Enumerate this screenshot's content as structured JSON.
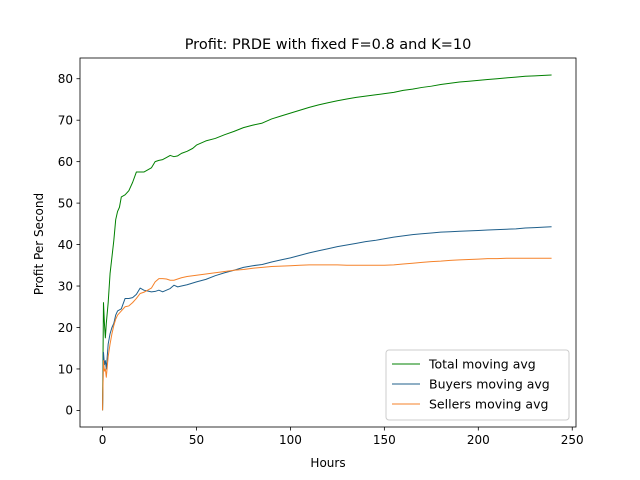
{
  "chart_data": {
    "type": "line",
    "title": "Profit: PRDE with fixed F=0.8 and K=10",
    "xlabel": "Hours",
    "ylabel": "Profit Per Second",
    "xlim": [
      -12,
      252
    ],
    "ylim": [
      -4,
      85
    ],
    "xticks": [
      0,
      50,
      100,
      150,
      200,
      250
    ],
    "yticks": [
      0,
      10,
      20,
      30,
      40,
      50,
      60,
      70,
      80
    ],
    "grid": false,
    "legend_position": "lower right",
    "series": [
      {
        "name": "Total moving avg",
        "color": "#008000",
        "points": [
          [
            0,
            0
          ],
          [
            0.5,
            26
          ],
          [
            1,
            21
          ],
          [
            1.5,
            17.5
          ],
          [
            2,
            21
          ],
          [
            3,
            26
          ],
          [
            4,
            33
          ],
          [
            5,
            37
          ],
          [
            6,
            41
          ],
          [
            7,
            46
          ],
          [
            8,
            48
          ],
          [
            9,
            49
          ],
          [
            10,
            51.5
          ],
          [
            12,
            52
          ],
          [
            14,
            53
          ],
          [
            16,
            55
          ],
          [
            18,
            57.5
          ],
          [
            20,
            57.5
          ],
          [
            22,
            57.5
          ],
          [
            24,
            58
          ],
          [
            26,
            58.5
          ],
          [
            28,
            60
          ],
          [
            30,
            60.3
          ],
          [
            32,
            60.5
          ],
          [
            34,
            61
          ],
          [
            36,
            61.5
          ],
          [
            38,
            61.2
          ],
          [
            40,
            61.4
          ],
          [
            42,
            62
          ],
          [
            45,
            62.5
          ],
          [
            48,
            63.2
          ],
          [
            50,
            64
          ],
          [
            55,
            65
          ],
          [
            60,
            65.6
          ],
          [
            65,
            66.5
          ],
          [
            70,
            67.3
          ],
          [
            75,
            68.2
          ],
          [
            80,
            68.8
          ],
          [
            85,
            69.3
          ],
          [
            90,
            70.3
          ],
          [
            95,
            71
          ],
          [
            100,
            71.7
          ],
          [
            105,
            72.4
          ],
          [
            110,
            73.1
          ],
          [
            115,
            73.7
          ],
          [
            120,
            74.2
          ],
          [
            125,
            74.7
          ],
          [
            130,
            75.1
          ],
          [
            135,
            75.5
          ],
          [
            140,
            75.8
          ],
          [
            145,
            76.1
          ],
          [
            150,
            76.4
          ],
          [
            155,
            76.7
          ],
          [
            160,
            77.2
          ],
          [
            165,
            77.5
          ],
          [
            170,
            77.9
          ],
          [
            175,
            78.2
          ],
          [
            180,
            78.6
          ],
          [
            185,
            78.9
          ],
          [
            190,
            79.2
          ],
          [
            195,
            79.4
          ],
          [
            200,
            79.6
          ],
          [
            205,
            79.8
          ],
          [
            210,
            80
          ],
          [
            215,
            80.2
          ],
          [
            220,
            80.4
          ],
          [
            225,
            80.6
          ],
          [
            230,
            80.7
          ],
          [
            235,
            80.8
          ],
          [
            239,
            80.9
          ]
        ]
      },
      {
        "name": "Buyers moving avg",
        "color": "#1f5f8b",
        "points": [
          [
            0,
            0
          ],
          [
            0.5,
            14
          ],
          [
            1,
            11
          ],
          [
            1.5,
            12
          ],
          [
            2,
            10
          ],
          [
            3,
            16
          ],
          [
            4,
            18.5
          ],
          [
            5,
            20
          ],
          [
            6,
            21
          ],
          [
            7,
            23
          ],
          [
            8,
            24
          ],
          [
            10,
            24.5
          ],
          [
            12,
            27
          ],
          [
            14,
            27
          ],
          [
            16,
            27.2
          ],
          [
            18,
            28
          ],
          [
            20,
            29.5
          ],
          [
            22,
            29
          ],
          [
            24,
            28.8
          ],
          [
            26,
            28.6
          ],
          [
            28,
            28.7
          ],
          [
            30,
            29
          ],
          [
            32,
            28.6
          ],
          [
            34,
            29
          ],
          [
            36,
            29.4
          ],
          [
            38,
            30.2
          ],
          [
            40,
            29.8
          ],
          [
            42,
            30
          ],
          [
            45,
            30.3
          ],
          [
            50,
            31
          ],
          [
            55,
            31.6
          ],
          [
            60,
            32.5
          ],
          [
            65,
            33.2
          ],
          [
            70,
            33.8
          ],
          [
            75,
            34.5
          ],
          [
            80,
            34.9
          ],
          [
            85,
            35.2
          ],
          [
            90,
            35.8
          ],
          [
            95,
            36.3
          ],
          [
            100,
            36.8
          ],
          [
            105,
            37.4
          ],
          [
            110,
            38
          ],
          [
            115,
            38.5
          ],
          [
            120,
            39
          ],
          [
            125,
            39.5
          ],
          [
            130,
            39.9
          ],
          [
            135,
            40.3
          ],
          [
            140,
            40.7
          ],
          [
            145,
            41
          ],
          [
            150,
            41.4
          ],
          [
            155,
            41.8
          ],
          [
            160,
            42.1
          ],
          [
            165,
            42.4
          ],
          [
            170,
            42.6
          ],
          [
            175,
            42.8
          ],
          [
            180,
            43
          ],
          [
            185,
            43.1
          ],
          [
            190,
            43.2
          ],
          [
            195,
            43.3
          ],
          [
            200,
            43.4
          ],
          [
            205,
            43.5
          ],
          [
            210,
            43.6
          ],
          [
            215,
            43.7
          ],
          [
            220,
            43.8
          ],
          [
            225,
            44
          ],
          [
            230,
            44.1
          ],
          [
            235,
            44.2
          ],
          [
            239,
            44.3
          ]
        ]
      },
      {
        "name": "Sellers moving avg",
        "color": "#f5822a",
        "points": [
          [
            0,
            0
          ],
          [
            0.5,
            12
          ],
          [
            1,
            9.5
          ],
          [
            1.5,
            10
          ],
          [
            2,
            8
          ],
          [
            3,
            13
          ],
          [
            4,
            16
          ],
          [
            5,
            18.5
          ],
          [
            6,
            20.5
          ],
          [
            7,
            22
          ],
          [
            8,
            23
          ],
          [
            10,
            24
          ],
          [
            12,
            25
          ],
          [
            14,
            25.2
          ],
          [
            16,
            26
          ],
          [
            18,
            27
          ],
          [
            20,
            28.2
          ],
          [
            22,
            28.5
          ],
          [
            24,
            29
          ],
          [
            26,
            29.5
          ],
          [
            28,
            31
          ],
          [
            30,
            31.8
          ],
          [
            32,
            31.8
          ],
          [
            34,
            31.7
          ],
          [
            36,
            31.4
          ],
          [
            38,
            31.4
          ],
          [
            40,
            31.7
          ],
          [
            42,
            32
          ],
          [
            45,
            32.3
          ],
          [
            50,
            32.6
          ],
          [
            55,
            32.9
          ],
          [
            60,
            33.2
          ],
          [
            65,
            33.5
          ],
          [
            70,
            33.8
          ],
          [
            75,
            34
          ],
          [
            80,
            34.3
          ],
          [
            85,
            34.5
          ],
          [
            90,
            34.7
          ],
          [
            95,
            34.8
          ],
          [
            100,
            34.9
          ],
          [
            105,
            35
          ],
          [
            110,
            35.1
          ],
          [
            115,
            35.1
          ],
          [
            120,
            35.1
          ],
          [
            125,
            35.1
          ],
          [
            130,
            35
          ],
          [
            135,
            35
          ],
          [
            140,
            35
          ],
          [
            145,
            35
          ],
          [
            150,
            35
          ],
          [
            155,
            35.1
          ],
          [
            160,
            35.3
          ],
          [
            165,
            35.5
          ],
          [
            170,
            35.7
          ],
          [
            175,
            35.9
          ],
          [
            180,
            36
          ],
          [
            185,
            36.2
          ],
          [
            190,
            36.3
          ],
          [
            195,
            36.4
          ],
          [
            200,
            36.5
          ],
          [
            205,
            36.6
          ],
          [
            210,
            36.6
          ],
          [
            215,
            36.7
          ],
          [
            220,
            36.7
          ],
          [
            225,
            36.7
          ],
          [
            230,
            36.7
          ],
          [
            235,
            36.7
          ],
          [
            239,
            36.7
          ]
        ]
      }
    ]
  }
}
